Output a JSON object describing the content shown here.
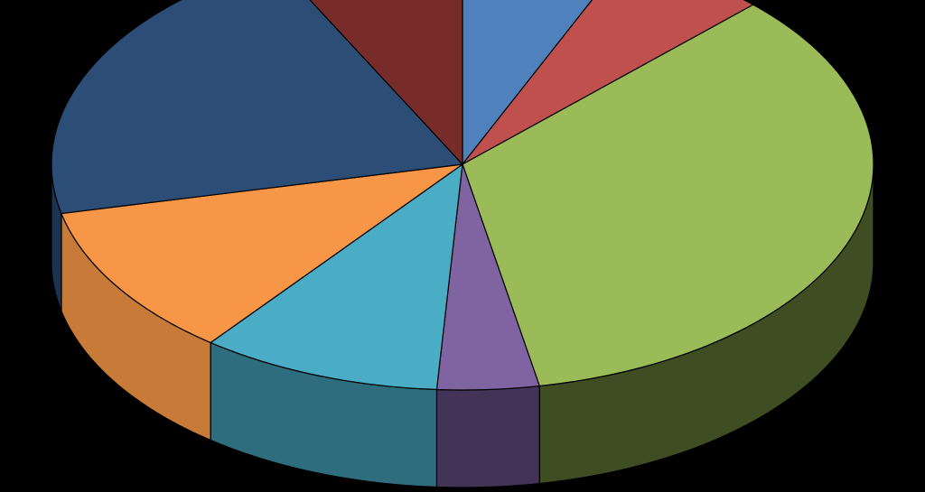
{
  "chart_data": {
    "type": "pie",
    "style": "3d",
    "background": "#000000",
    "start_angle_deg": -90,
    "direction": "clockwise",
    "slices": [
      {
        "value": 6.5,
        "color": "#4F81BD",
        "side_color": "#2F5A8F"
      },
      {
        "value": 6.0,
        "color": "#C0504D",
        "side_color": "#8A3634"
      },
      {
        "value": 34.5,
        "color": "#9BBB59",
        "side_color": "#3F4D22"
      },
      {
        "value": 4.0,
        "color": "#8064A2",
        "side_color": "#433357"
      },
      {
        "value": 9.5,
        "color": "#4BACC6",
        "side_color": "#2E6D7E"
      },
      {
        "value": 11.0,
        "color": "#F79646",
        "side_color": "#C87A38"
      },
      {
        "value": 21.0,
        "color": "#2C4D75",
        "side_color": "#1C3350"
      },
      {
        "value": 7.5,
        "color": "#772C2A",
        "side_color": "#4A1A19"
      }
    ]
  }
}
